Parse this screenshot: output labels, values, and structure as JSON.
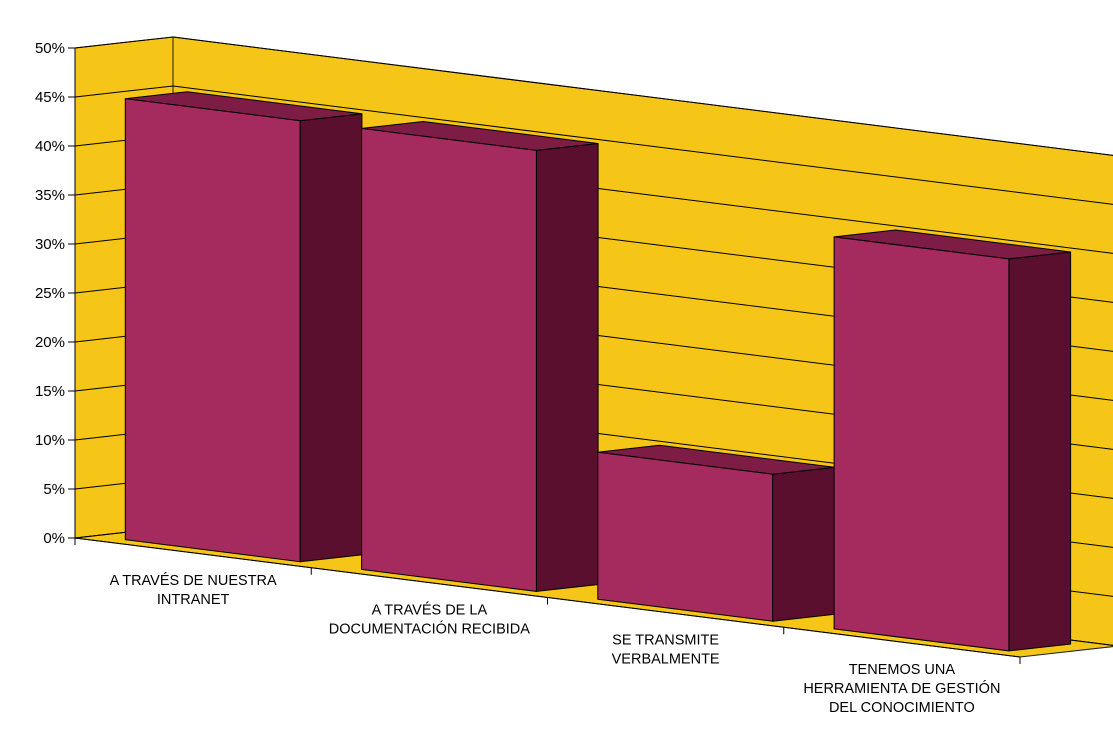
{
  "chart_data": {
    "type": "bar",
    "title": "",
    "xlabel": "",
    "ylabel": "",
    "categories": [
      [
        "A TRAVÉS DE NUESTRA",
        "INTRANET"
      ],
      [
        "A TRAVÉS DE LA",
        "DOCUMENTACIÓN RECIBIDA"
      ],
      [
        "SE TRANSMITE",
        "VERBALMENTE"
      ],
      [
        "TENEMOS UNA",
        "HERRAMIENTA DE GESTIÓN",
        "DEL CONOCIMIENTO"
      ]
    ],
    "values": [
      45,
      45,
      15,
      40
    ],
    "ylim": [
      0,
      50
    ],
    "yticks": [
      "0%",
      "5%",
      "10%",
      "15%",
      "20%",
      "25%",
      "30%",
      "35%",
      "40%",
      "45%",
      "50%"
    ],
    "grid": true,
    "legend": "none",
    "style": "3d-column",
    "colors": {
      "wall": "#F5C518",
      "bar_front": "#A52A5E",
      "bar_top": "#7D1D45",
      "bar_side": "#5A0F2E",
      "axis": "#000000"
    }
  }
}
